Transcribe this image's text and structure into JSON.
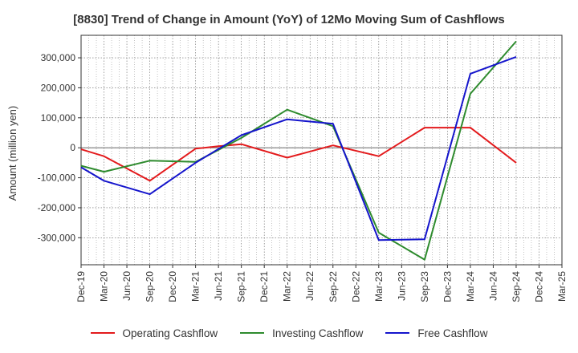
{
  "chart_data": {
    "type": "line",
    "title": "[8830]  Trend of Change in Amount (YoY) of 12Mo Moving Sum of Cashflows",
    "xlabel": "",
    "ylabel": "Amount (million yen)",
    "ylim": [
      -390000,
      375000
    ],
    "yticks": [
      -300000,
      -200000,
      -100000,
      0,
      100000,
      200000,
      300000
    ],
    "ytick_labels": [
      "-300,000",
      "-200,000",
      "-100,000",
      "0",
      "100,000",
      "200,000",
      "300,000"
    ],
    "categories": [
      "Dec-19",
      "Mar-20",
      "Jun-20",
      "Sep-20",
      "Dec-20",
      "Mar-21",
      "Jun-21",
      "Sep-21",
      "Dec-21",
      "Mar-22",
      "Jun-22",
      "Sep-22",
      "Dec-22",
      "Mar-23",
      "Jun-23",
      "Sep-23",
      "Dec-23",
      "Mar-24",
      "Jun-24",
      "Sep-24",
      "Dec-24",
      "Mar-25"
    ],
    "grid": true,
    "legend_position": "bottom",
    "series": [
      {
        "name": "Operating Cashflow",
        "color": "#e31a1c",
        "points": [
          [
            "Dec-19",
            -5000
          ],
          [
            "Mar-20",
            -28000
          ],
          [
            "Sep-20",
            -110000
          ],
          [
            "Mar-21",
            -3000
          ],
          [
            "Jun-21",
            5000
          ],
          [
            "Sep-21",
            12000
          ],
          [
            "Mar-22",
            -33000
          ],
          [
            "Sep-22",
            8000
          ],
          [
            "Mar-23",
            -28000
          ],
          [
            "Sep-23",
            67000
          ],
          [
            "Mar-24",
            67000
          ],
          [
            "Sep-24",
            -50000
          ]
        ]
      },
      {
        "name": "Investing Cashflow",
        "color": "#2e8b2e",
        "points": [
          [
            "Dec-19",
            -60000
          ],
          [
            "Mar-20",
            -80000
          ],
          [
            "Sep-20",
            -43000
          ],
          [
            "Mar-21",
            -47000
          ],
          [
            "Sep-21",
            33000
          ],
          [
            "Mar-22",
            127000
          ],
          [
            "Sep-22",
            72000
          ],
          [
            "Mar-23",
            -283000
          ],
          [
            "Sep-23",
            -373000
          ],
          [
            "Mar-24",
            180000
          ],
          [
            "Sep-24",
            355000
          ]
        ]
      },
      {
        "name": "Free Cashflow",
        "color": "#1515cc",
        "points": [
          [
            "Dec-19",
            -65000
          ],
          [
            "Mar-20",
            -110000
          ],
          [
            "Sep-20",
            -155000
          ],
          [
            "Mar-21",
            -50000
          ],
          [
            "Sep-21",
            42000
          ],
          [
            "Mar-22",
            95000
          ],
          [
            "Sep-22",
            80000
          ],
          [
            "Mar-23",
            -308000
          ],
          [
            "Sep-23",
            -305000
          ],
          [
            "Mar-24",
            247000
          ],
          [
            "Sep-24",
            303000
          ]
        ]
      }
    ]
  }
}
